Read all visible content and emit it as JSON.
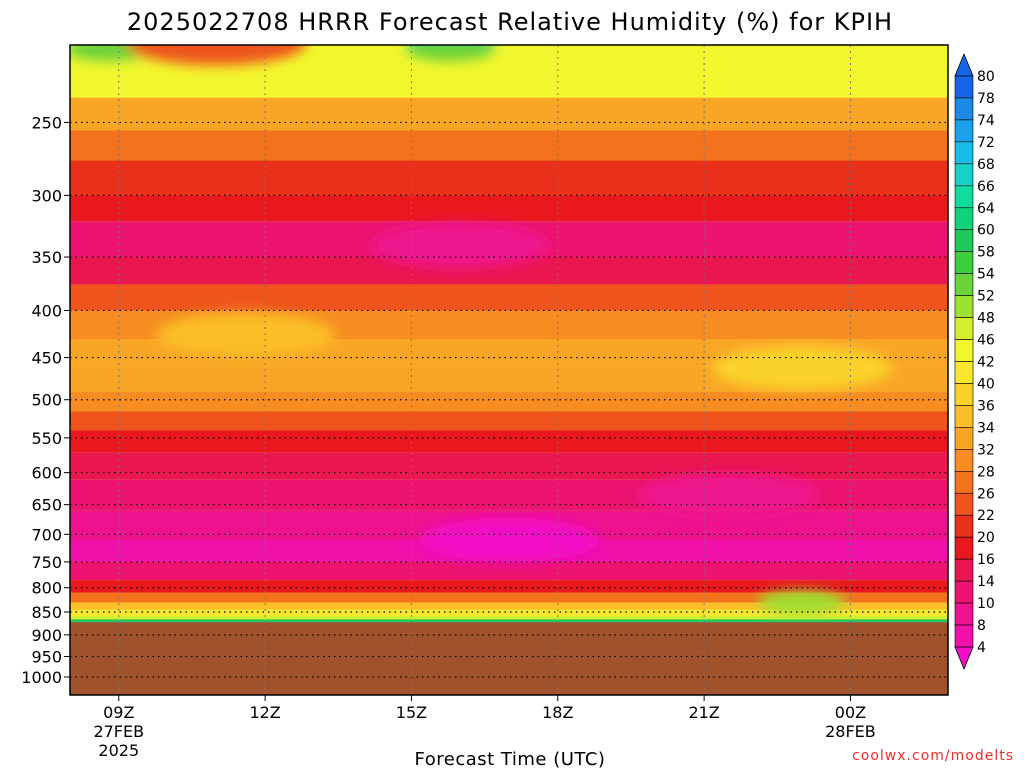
{
  "chart_data": {
    "type": "heatmap",
    "title": "2025022708 HRRR Forecast Relative Humidity (%) for KPIH",
    "xlabel": "Forecast Time (UTC)",
    "ylabel": "",
    "credit": "coolwx.com/modelts",
    "x_ticks": [
      {
        "hour": 9,
        "lines": [
          "09Z",
          "27FEB",
          "2025"
        ]
      },
      {
        "hour": 12,
        "lines": [
          "12Z"
        ]
      },
      {
        "hour": 15,
        "lines": [
          "15Z"
        ]
      },
      {
        "hour": 18,
        "lines": [
          "18Z"
        ]
      },
      {
        "hour": 21,
        "lines": [
          "21Z"
        ]
      },
      {
        "hour": 24,
        "lines": [
          "00Z",
          "28FEB"
        ]
      }
    ],
    "x_range_hours": [
      8,
      26
    ],
    "y_ticks": [
      250,
      300,
      350,
      400,
      450,
      500,
      550,
      600,
      650,
      700,
      750,
      800,
      850,
      900,
      950,
      1000
    ],
    "y_range_hpa": [
      200,
      1050
    ],
    "y_scale": "log",
    "y_reversed": true,
    "ground_level_hpa": 872,
    "grid": true,
    "colorbar": {
      "labels": [
        "80",
        "78",
        "74",
        "72",
        "68",
        "66",
        "64",
        "60",
        "58",
        "54",
        "52",
        "48",
        "46",
        "42",
        "40",
        "36",
        "34",
        "32",
        "28",
        "26",
        "22",
        "20",
        "16",
        "14",
        "10",
        "8",
        "4"
      ],
      "colors": [
        "#1565e6",
        "#1e88e5",
        "#1aa3ec",
        "#17bde8",
        "#14d2c8",
        "#10dca0",
        "#10d27a",
        "#1ec85a",
        "#3ccd3c",
        "#6ad23a",
        "#9ee033",
        "#d2ee2e",
        "#f2f62e",
        "#fae62c",
        "#fbd22a",
        "#fbbe28",
        "#f9a626",
        "#f68c22",
        "#f2721e",
        "#ee541c",
        "#e9301a",
        "#e8181e",
        "#ea1650",
        "#ec1470",
        "#ee128e",
        "#f010aa",
        "#f20ec6"
      ],
      "extend": "both"
    },
    "bands": [
      {
        "p": 215,
        "rh": 44
      },
      {
        "p": 235,
        "rh": 33
      },
      {
        "p": 255,
        "rh": 27
      },
      {
        "p": 275,
        "rh": 22
      },
      {
        "p": 300,
        "rh": 18
      },
      {
        "p": 320,
        "rh": 14
      },
      {
        "p": 350,
        "rh": 17
      },
      {
        "p": 375,
        "rh": 25
      },
      {
        "p": 400,
        "rh": 30
      },
      {
        "p": 430,
        "rh": 33
      },
      {
        "p": 460,
        "rh": 33
      },
      {
        "p": 490,
        "rh": 30
      },
      {
        "p": 515,
        "rh": 24
      },
      {
        "p": 540,
        "rh": 20
      },
      {
        "p": 570,
        "rh": 15
      },
      {
        "p": 610,
        "rh": 12
      },
      {
        "p": 660,
        "rh": 9
      },
      {
        "p": 710,
        "rh": 6
      },
      {
        "p": 750,
        "rh": 12
      },
      {
        "p": 785,
        "rh": 18
      },
      {
        "p": 810,
        "rh": 28
      },
      {
        "p": 830,
        "rh": 36
      },
      {
        "p": 845,
        "rh": 42
      },
      {
        "p": 858,
        "rh": 48
      },
      {
        "p": 866,
        "rh": 60
      },
      {
        "p": 872,
        "rh": 72
      }
    ],
    "features": [
      {
        "hour": 15.8,
        "p": 205,
        "rh": 66
      },
      {
        "hour": 15.8,
        "p": 208,
        "rh": 54
      },
      {
        "hour": 8.8,
        "p": 208,
        "rh": 54
      },
      {
        "hour": 11.0,
        "p": 205,
        "rh": 26
      },
      {
        "hour": 23.0,
        "p": 462,
        "rh": 40
      },
      {
        "hour": 11.6,
        "p": 425,
        "rh": 36
      },
      {
        "hour": 16.0,
        "p": 340,
        "rh": 10
      },
      {
        "hour": 21.5,
        "p": 635,
        "rh": 10
      },
      {
        "hour": 17.0,
        "p": 710,
        "rh": 4
      },
      {
        "hour": 23.0,
        "p": 830,
        "rh": 52
      }
    ]
  }
}
